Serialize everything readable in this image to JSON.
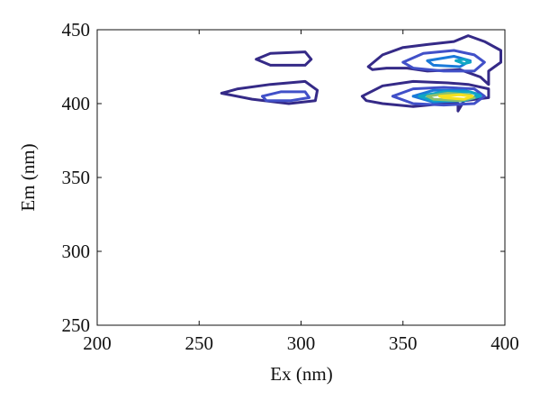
{
  "chart_data": {
    "type": "contour",
    "x_label": "Ex (nm)",
    "y_label": "Em (nm)",
    "xlim": [
      200,
      400
    ],
    "xticks": [
      200,
      250,
      300,
      350,
      400
    ],
    "ylim": [
      250,
      450
    ],
    "yticks": [
      250,
      300,
      350,
      400,
      450
    ],
    "series": [
      {
        "color": "#352a87",
        "paths": [
          {
            "x": [
              261,
              269,
              285,
              302,
              308,
              307,
              294,
              276,
              261
            ],
            "y": [
              407,
              410,
              413,
              415,
              409,
              402,
              400,
              403,
              407
            ]
          },
          {
            "x": [
              278,
              285,
              302,
              305,
              302,
              285,
              278
            ],
            "y": [
              430,
              434,
              435,
              430,
              426,
              426,
              430
            ]
          },
          {
            "x": [
              333,
              340,
              350,
              362,
              375,
              382,
              390,
              398,
              398,
              392,
              392,
              388,
              378,
              362,
              352,
              342,
              335,
              333
            ],
            "y": [
              425,
              433,
              438,
              440,
              442,
              446,
              442,
              436,
              428,
              422,
              413,
              418,
              423,
              422,
              424,
              424,
              423,
              425
            ]
          },
          {
            "x": [
              330,
              340,
              355,
              372,
              382,
              392,
              392,
              380,
              377,
              377,
              370,
              355,
              340,
              332,
              330
            ],
            "y": [
              405,
              412,
              415,
              414,
              413,
              410,
              404,
              402,
              395,
              400,
              400,
              398,
              400,
              402,
              405
            ]
          }
        ]
      },
      {
        "color": "#4150c8",
        "paths": [
          {
            "x": [
              281,
              290,
              302,
              304,
              295,
              283,
              281
            ],
            "y": [
              405,
              408,
              408,
              404,
              402,
              402,
              405
            ]
          },
          {
            "x": [
              350,
              360,
              375,
              385,
              390,
              385,
              370,
              355,
              350
            ],
            "y": [
              428,
              434,
              436,
              433,
              428,
              422,
              422,
              424,
              428
            ]
          },
          {
            "x": [
              345,
              355,
              370,
              385,
              390,
              385,
              370,
              355,
              345
            ],
            "y": [
              405,
              410,
              411,
              410,
              405,
              400,
              399,
              400,
              405
            ]
          }
        ]
      },
      {
        "color": "#1a7ad9",
        "paths": [
          {
            "x": [
              355,
              365,
              380,
              388,
              380,
              365,
              355
            ],
            "y": [
              405,
              409,
              409,
              406,
              402,
              401,
              405
            ]
          },
          {
            "x": [
              362,
              375,
              383,
              378,
              365,
              362
            ],
            "y": [
              429,
              432,
              429,
              425,
              426,
              429
            ]
          }
        ]
      },
      {
        "color": "#0fa7c4",
        "paths": [
          {
            "x": [
              358,
              370,
              383,
              388,
              380,
              365,
              358
            ],
            "y": [
              405,
              408,
              408,
              405,
              402,
              402,
              405
            ]
          },
          {
            "x": [
              376,
              380,
              383,
              380,
              376
            ],
            "y": [
              429,
              430,
              428,
              427,
              429
            ]
          }
        ]
      },
      {
        "color": "#8cc06c",
        "paths": [
          {
            "x": [
              362,
              372,
              383,
              385,
              378,
              365,
              362
            ],
            "y": [
              405,
              407,
              406,
              404,
              402,
              403,
              405
            ]
          }
        ]
      },
      {
        "color": "#f5e11f",
        "paths": [
          {
            "x": [
              368,
              378,
              384,
              380,
              370,
              368
            ],
            "y": [
              405,
              406,
              405,
              403,
              404,
              405
            ]
          }
        ]
      }
    ]
  }
}
